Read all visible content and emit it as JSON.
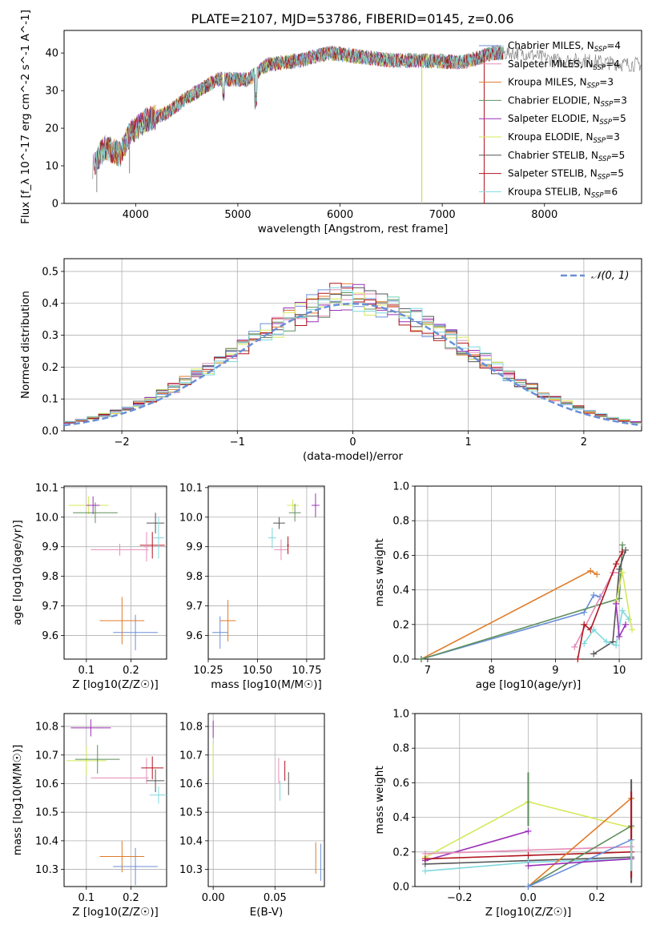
{
  "figure_title": "PLATE=2107, MJD=53786, FIBERID=0145, z=0.06",
  "series_colors": {
    "Chabrier MILES": "#6a8fd8",
    "Salpeter MILES": "#e58cb8",
    "Kroupa MILES": "#e07b28",
    "Chabrier ELODIE": "#5d8f5d",
    "Salpeter ELODIE": "#9b30b8",
    "Kroupa ELODIE": "#d6e85a",
    "Chabrier STELIB": "#555555",
    "Salpeter STELIB": "#b0141e",
    "Kroupa STELIB": "#7fd8dc"
  },
  "chart_data": [
    {
      "id": "spectrum",
      "type": "line",
      "title": "PLATE=2107, MJD=53786, FIBERID=0145, z=0.06",
      "xlabel": "wavelength [Angstrom, rest frame]",
      "ylabel": "Flux [f_λ 10^-17 erg cm^-2 s^-1 A^-1]",
      "xlim": [
        3300,
        8950
      ],
      "ylim": [
        0,
        46
      ],
      "xticks": [
        4000,
        5000,
        6000,
        7000,
        8000
      ],
      "yticks": [
        0,
        10,
        20,
        30,
        40
      ],
      "grid": false,
      "legend": {
        "placement": "top-right",
        "entries": [
          {
            "name": "Chabrier MILES",
            "n_ssp": 4
          },
          {
            "name": "Salpeter MILES",
            "n_ssp": 4
          },
          {
            "name": "Kroupa MILES",
            "n_ssp": 3
          },
          {
            "name": "Chabrier ELODIE",
            "n_ssp": 3
          },
          {
            "name": "Salpeter ELODIE",
            "n_ssp": 5
          },
          {
            "name": "Kroupa ELODIE",
            "n_ssp": 3
          },
          {
            "name": "Chabrier STELIB",
            "n_ssp": 5
          },
          {
            "name": "Salpeter STELIB",
            "n_ssp": 5
          },
          {
            "name": "Kroupa STELIB",
            "n_ssp": 6
          }
        ]
      },
      "continuum": [
        [
          3580,
          10
        ],
        [
          3700,
          15
        ],
        [
          3850,
          13
        ],
        [
          3950,
          19
        ],
        [
          4100,
          22
        ],
        [
          4300,
          24
        ],
        [
          4500,
          28
        ],
        [
          4800,
          33
        ],
        [
          5100,
          33
        ],
        [
          5300,
          37
        ],
        [
          5600,
          38
        ],
        [
          5900,
          40
        ],
        [
          6200,
          39
        ],
        [
          6500,
          38
        ],
        [
          6800,
          38
        ],
        [
          7200,
          37.5
        ],
        [
          7500,
          40
        ],
        [
          7800,
          40
        ],
        [
          8100,
          38
        ],
        [
          8400,
          38
        ],
        [
          8800,
          37
        ]
      ],
      "drops": [
        [
          5170,
          25
        ],
        [
          3620,
          3
        ],
        [
          3940,
          8
        ],
        [
          6800,
          0
        ],
        [
          7410,
          0
        ]
      ]
    },
    {
      "id": "residuals",
      "type": "bar",
      "title": "",
      "xlabel": "(data-model)/error",
      "ylabel": "Normed distribution",
      "xlim": [
        -2.5,
        2.5
      ],
      "ylim": [
        0,
        0.54
      ],
      "xticks": [
        -2,
        -1,
        0,
        1,
        2
      ],
      "yticks": [
        0.0,
        0.1,
        0.2,
        0.3,
        0.4,
        0.5
      ],
      "grid": true,
      "bin_width": 0.1,
      "legend": {
        "placement": "top-right",
        "entries": [
          {
            "name": "𝒩(0, 1)"
          }
        ]
      },
      "reference_curve": "gaussian mean 0 sigma 1"
    },
    {
      "id": "age_vs_Z",
      "type": "scatter",
      "xlabel": "Z [log10(Z/Z☉)]",
      "ylabel": "age  [log10(age/yr)]",
      "xlim": [
        0.05,
        0.28
      ],
      "ylim": [
        9.52,
        10.105
      ],
      "xticks": [
        0.1,
        0.2
      ],
      "yticks": [
        9.6,
        9.7,
        9.8,
        9.9,
        10.0,
        10.1
      ],
      "grid": true,
      "points": [
        {
          "series": "Chabrier MILES",
          "x": 0.21,
          "y": 9.61,
          "xerr": 0.05,
          "yerr": 0.06
        },
        {
          "series": "Kroupa MILES",
          "x": 0.18,
          "y": 9.65,
          "xerr": 0.05,
          "yerr": 0.08
        },
        {
          "series": "Salpeter MILES",
          "x": 0.175,
          "y": 9.89,
          "xerr": 0.065,
          "yerr": 0.02
        },
        {
          "series": "Kroupa ELODIE",
          "x": 0.105,
          "y": 10.04,
          "xerr": 0.045,
          "yerr": 0.03
        },
        {
          "series": "Chabrier ELODIE",
          "x": 0.12,
          "y": 10.015,
          "xerr": 0.05,
          "yerr": 0.035
        },
        {
          "series": "Salpeter ELODIE",
          "x": 0.115,
          "y": 10.04,
          "xerr": 0.015,
          "yerr": 0.03
        },
        {
          "series": "Chabrier STELIB",
          "x": 0.255,
          "y": 9.98,
          "xerr": 0.02,
          "yerr": 0.035
        },
        {
          "series": "Salpeter STELIB",
          "x": 0.248,
          "y": 9.905,
          "xerr": 0.028,
          "yerr": 0.045
        },
        {
          "series": "Kroupa STELIB",
          "x": 0.262,
          "y": 9.93,
          "xerr": 0.012,
          "yerr": 0.07
        },
        {
          "series": "Salpeter MILES",
          "x": 0.235,
          "y": 9.9,
          "xerr": 0.005,
          "yerr": 0.05
        }
      ]
    },
    {
      "id": "age_vs_mass",
      "type": "scatter",
      "xlabel": "mass [log10(M/M☉)]",
      "ylabel": "",
      "xlim": [
        10.25,
        10.84
      ],
      "ylim": [
        9.52,
        10.105
      ],
      "xticks": [
        10.25,
        10.5,
        10.75
      ],
      "yticks": [
        9.6,
        9.7,
        9.8,
        9.9,
        10.0,
        10.1
      ],
      "grid": true,
      "points": [
        {
          "series": "Chabrier MILES",
          "x": 10.31,
          "y": 9.61,
          "xerr": 0.04,
          "yerr": 0.055
        },
        {
          "series": "Kroupa MILES",
          "x": 10.35,
          "y": 9.65,
          "xerr": 0.04,
          "yerr": 0.07
        },
        {
          "series": "Salpeter MILES",
          "x": 10.62,
          "y": 9.89,
          "xerr": 0.035,
          "yerr": 0.035
        },
        {
          "series": "Kroupa STELIB",
          "x": 10.575,
          "y": 9.93,
          "xerr": 0.02,
          "yerr": 0.035
        },
        {
          "series": "Chabrier STELIB",
          "x": 10.61,
          "y": 9.98,
          "xerr": 0.03,
          "yerr": 0.02
        },
        {
          "series": "Salpeter STELIB",
          "x": 10.655,
          "y": 9.905,
          "xerr": 0.005,
          "yerr": 0.03
        },
        {
          "series": "Kroupa ELODIE",
          "x": 10.68,
          "y": 10.04,
          "xerr": 0.03,
          "yerr": 0.02
        },
        {
          "series": "Chabrier ELODIE",
          "x": 10.69,
          "y": 10.015,
          "xerr": 0.03,
          "yerr": 0.03
        },
        {
          "series": "Salpeter ELODIE",
          "x": 10.795,
          "y": 10.04,
          "xerr": 0.02,
          "yerr": 0.04
        }
      ]
    },
    {
      "id": "weight_vs_age",
      "type": "line",
      "xlabel": "age  [log10(age/yr)]",
      "ylabel": "mass weight",
      "xlim": [
        6.8,
        10.35
      ],
      "ylim": [
        0,
        1.0
      ],
      "xticks": [
        7,
        8,
        9,
        10
      ],
      "yticks": [
        0.0,
        0.2,
        0.4,
        0.6,
        0.8,
        1.0
      ],
      "grid": true,
      "series": [
        {
          "name": "Kroupa MILES",
          "x": [
            6.9,
            9.55,
            9.65
          ],
          "y": [
            0.0,
            0.51,
            0.49
          ]
        },
        {
          "name": "Chabrier MILES",
          "x": [
            6.9,
            9.45,
            9.6,
            9.7
          ],
          "y": [
            0.0,
            0.27,
            0.37,
            0.36
          ]
        },
        {
          "name": "Chabrier ELODIE",
          "x": [
            6.9,
            10.0,
            10.05
          ],
          "y": [
            0.0,
            0.35,
            0.66
          ]
        },
        {
          "name": "Salpeter MILES",
          "x": [
            9.3,
            9.9,
            10.0
          ],
          "y": [
            0.07,
            0.5,
            0.5
          ]
        },
        {
          "name": "Salpeter STELIB",
          "x": [
            9.35,
            9.45,
            9.55,
            9.95,
            10.05
          ],
          "y": [
            0.0,
            0.2,
            0.17,
            0.55,
            0.62
          ]
        },
        {
          "name": "Chabrier STELIB",
          "x": [
            9.6,
            9.9,
            10.0,
            10.1
          ],
          "y": [
            0.03,
            0.1,
            0.52,
            0.63
          ]
        },
        {
          "name": "Kroupa STELIB",
          "x": [
            9.45,
            9.6,
            9.8,
            9.95,
            10.05,
            10.15
          ],
          "y": [
            0.09,
            0.17,
            0.1,
            0.08,
            0.28,
            0.23
          ]
        },
        {
          "name": "Kroupa ELODIE",
          "x": [
            9.95,
            10.05,
            10.2
          ],
          "y": [
            0.33,
            0.5,
            0.17
          ]
        },
        {
          "name": "Salpeter ELODIE",
          "x": [
            9.95,
            10.0,
            10.1
          ],
          "y": [
            0.32,
            0.13,
            0.2
          ]
        }
      ]
    },
    {
      "id": "mass_vs_Z",
      "type": "scatter",
      "xlabel": "Z [log10(Z/Z☉)]",
      "ylabel": "mass [log10(M/M☉)]",
      "xlim": [
        0.05,
        0.28
      ],
      "ylim": [
        10.24,
        10.845
      ],
      "xticks": [
        0.1,
        0.2
      ],
      "yticks": [
        10.3,
        10.4,
        10.5,
        10.6,
        10.7,
        10.8
      ],
      "grid": true,
      "points": [
        {
          "series": "Salpeter ELODIE",
          "x": 0.11,
          "y": 10.795,
          "xerr": 0.045,
          "yerr": 0.03
        },
        {
          "series": "Kroupa ELODIE",
          "x": 0.1,
          "y": 10.68,
          "xerr": 0.045,
          "yerr": 0.05
        },
        {
          "series": "Chabrier ELODIE",
          "x": 0.125,
          "y": 10.685,
          "xerr": 0.05,
          "yerr": 0.05
        },
        {
          "series": "Salpeter MILES",
          "x": 0.175,
          "y": 10.62,
          "xerr": 0.065,
          "yerr": 0.0
        },
        {
          "series": "Salpeter MILES",
          "x": 0.235,
          "y": 10.645,
          "xerr": 0.0,
          "yerr": 0.045
        },
        {
          "series": "Salpeter STELIB",
          "x": 0.248,
          "y": 10.655,
          "xerr": 0.025,
          "yerr": 0.04
        },
        {
          "series": "Chabrier STELIB",
          "x": 0.255,
          "y": 10.61,
          "xerr": 0.02,
          "yerr": 0.04
        },
        {
          "series": "Kroupa STELIB",
          "x": 0.262,
          "y": 10.56,
          "xerr": 0.02,
          "yerr": 0.03
        },
        {
          "series": "Kroupa MILES",
          "x": 0.18,
          "y": 10.345,
          "xerr": 0.05,
          "yerr": 0.055
        },
        {
          "series": "Chabrier MILES",
          "x": 0.21,
          "y": 10.31,
          "xerr": 0.05,
          "yerr": 0.065
        }
      ]
    },
    {
      "id": "mass_vs_EBV",
      "type": "scatter",
      "xlabel": "E(B-V)",
      "ylabel": "",
      "xlim": [
        -0.004,
        0.09
      ],
      "ylim": [
        10.24,
        10.845
      ],
      "xticks": [
        0.0,
        0.05
      ],
      "yticks": [
        10.3,
        10.4,
        10.5,
        10.6,
        10.7,
        10.8
      ],
      "grid": true,
      "points": [
        {
          "series": "Salpeter ELODIE",
          "x": 0.0,
          "y": 10.79,
          "xerr": 0,
          "yerr": 0.03
        },
        {
          "series": "Kroupa ELODIE",
          "x": 0.0,
          "y": 10.68,
          "xerr": 0,
          "yerr": 0.06
        },
        {
          "series": "Salpeter MILES",
          "x": 0.053,
          "y": 10.645,
          "xerr": 0,
          "yerr": 0.045
        },
        {
          "series": "Kroupa STELIB",
          "x": 0.054,
          "y": 10.575,
          "xerr": 0,
          "yerr": 0.035
        },
        {
          "series": "Salpeter STELIB",
          "x": 0.058,
          "y": 10.645,
          "xerr": 0,
          "yerr": 0.035
        },
        {
          "series": "Chabrier STELIB",
          "x": 0.061,
          "y": 10.6,
          "xerr": 0,
          "yerr": 0.04
        },
        {
          "series": "Kroupa MILES",
          "x": 0.083,
          "y": 10.34,
          "xerr": 0,
          "yerr": 0.055
        },
        {
          "series": "Chabrier MILES",
          "x": 0.087,
          "y": 10.325,
          "xerr": 0,
          "yerr": 0.065
        }
      ]
    },
    {
      "id": "weight_vs_Z",
      "type": "line",
      "xlabel": "Z [log10(Z/Z☉)]",
      "ylabel": "mass weight",
      "xlim": [
        -0.33,
        0.33
      ],
      "ylim": [
        0,
        1.0
      ],
      "xticks": [
        -0.2,
        0.0,
        0.2
      ],
      "yticks": [
        0.0,
        0.2,
        0.4,
        0.6,
        0.8,
        1.0
      ],
      "grid": true,
      "series": [
        {
          "name": "Kroupa ELODIE",
          "x": [
            -0.3,
            0.0,
            0.3
          ],
          "y": [
            0.17,
            0.49,
            0.34
          ]
        },
        {
          "name": "Salpeter ELODIE",
          "x": [
            -0.3,
            0.0
          ],
          "y": [
            0.15,
            0.32
          ]
        },
        {
          "name": "Salpeter MILES",
          "x": [
            -0.3,
            0.0,
            0.3
          ],
          "y": [
            0.19,
            0.21,
            0.23
          ]
        },
        {
          "name": "Salpeter STELIB",
          "x": [
            -0.3,
            0.0,
            0.3
          ],
          "y": [
            0.16,
            0.18,
            0.2
          ]
        },
        {
          "name": "Chabrier STELIB",
          "x": [
            -0.3,
            0.0,
            0.3
          ],
          "y": [
            0.13,
            0.15,
            0.17
          ]
        },
        {
          "name": "Kroupa STELIB",
          "x": [
            -0.3,
            0.0,
            0.3
          ],
          "y": [
            0.09,
            0.14,
            0.16
          ]
        },
        {
          "name": "Kroupa MILES",
          "x": [
            0.0,
            0.3
          ],
          "y": [
            0.0,
            0.51
          ]
        },
        {
          "name": "Chabrier ELODIE",
          "x": [
            0.0,
            0.3
          ],
          "y": [
            0.0,
            0.35
          ]
        },
        {
          "name": "Chabrier MILES",
          "x": [
            0.0,
            0.3
          ],
          "y": [
            0.0,
            0.27
          ]
        },
        {
          "name": "Salpeter ELODIE",
          "x": [
            0.0,
            0.3
          ],
          "y": [
            0.12,
            0.16
          ]
        }
      ],
      "vertical_ticks_at": [
        {
          "series": "Chabrier ELODIE",
          "x": 0.0,
          "y": [
            0.35,
            0.66
          ]
        },
        {
          "series": "Chabrier STELIB",
          "x": 0.3,
          "y": [
            0.02,
            0.62
          ]
        },
        {
          "series": "Salpeter STELIB",
          "x": 0.3,
          "y": [
            0.05,
            0.55
          ]
        },
        {
          "series": "Kroupa STELIB",
          "x": 0.3,
          "y": [
            0.09,
            0.27
          ]
        }
      ]
    }
  ]
}
